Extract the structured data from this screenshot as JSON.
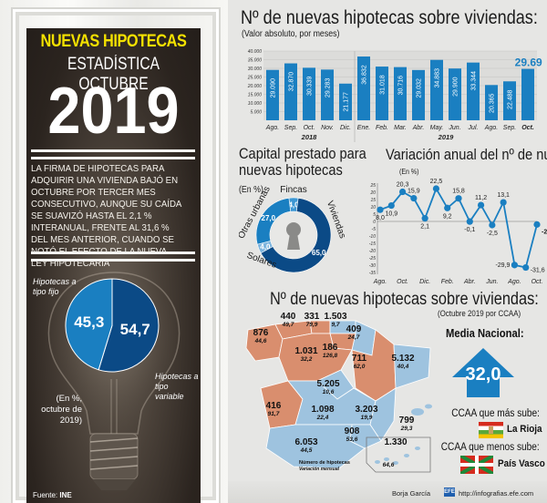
{
  "header": {
    "headline": "NUEVAS HIPOTECAS",
    "subheadline": "ESTADÍSTICA OCTUBRE",
    "year": "2019"
  },
  "summary": "LA FIRMA DE HIPOTECAS PARA ADQUIRIR UNA VIVIENDA BAJÓ EN OCTUBRE POR TERCER MES CONSECUTIVO, AUNQUE SU CAÍDA SE SUAVIZÓ HASTA EL 2,1 % INTERANUAL, FRENTE AL 31,6 % DEL MES ANTERIOR, CUANDO SE NOTÓ EL EFECTO DE LA NUEVA LEY HIPOTECARIA",
  "source_label": "Fuente:",
  "source_name": "INE",
  "footer": {
    "author": "Borja García",
    "logo_text": "EFE",
    "url": "http://infografias.efe.com"
  },
  "colors": {
    "bar_blue": "#1a7fc1",
    "dark_blue": "#0b4a86",
    "mid_blue": "#1a7fc1",
    "orange_region": "#d98e6e",
    "blue_region": "#9ec3df",
    "headline_yellow": "#f4e100"
  },
  "chart_data": [
    {
      "id": "monthly_bar",
      "type": "bar",
      "title": "Nº de nuevas hipotecas sobre viviendas:",
      "subtitle": "(Valor absoluto, por meses)",
      "categories": [
        "Ago.",
        "Sep.",
        "Oct.",
        "Nov.",
        "Dic.",
        "Ene.",
        "Feb.",
        "Mar.",
        "Abr.",
        "May.",
        "Jun.",
        "Jul.",
        "Ago.",
        "Sep.",
        "Oct."
      ],
      "year_groups": [
        {
          "label": "2018",
          "count": 5
        },
        {
          "label": "2019",
          "count": 10
        }
      ],
      "values": [
        29090,
        32870,
        30339,
        29283,
        21177,
        36832,
        31018,
        30716,
        29032,
        34883,
        29900,
        33344,
        20365,
        22488,
        29691
      ],
      "value_labels": [
        "29.090",
        "32.870",
        "30.339",
        "29.283",
        "21.177",
        "36.832",
        "31.018",
        "30.716",
        "29.032",
        "34.883",
        "29.900",
        "33.344",
        "20.365",
        "22.488",
        "29.691"
      ],
      "yticks": [
        "40.000",
        "35.000",
        "30.000",
        "25.000",
        "20.000",
        "15.000",
        "10.000",
        "5.000"
      ],
      "ylim": [
        0,
        40000
      ],
      "highlight_last": true
    },
    {
      "id": "capital_donut",
      "type": "pie",
      "title": "Capital prestado para nuevas hipotecas",
      "unit_label": "(En %)",
      "slices": [
        {
          "label": "Viviendas",
          "value": 65.0,
          "value_label": "65,0",
          "color": "#0b4a86"
        },
        {
          "label": "Solares",
          "value": 4.0,
          "value_label": "4,0",
          "color": "#7db4dd"
        },
        {
          "label": "Otras urbanas",
          "value": 27.0,
          "value_label": "27,0",
          "color": "#1a7fc1"
        },
        {
          "label": "Fincas",
          "value": 4.0,
          "value_label": "4,0",
          "color": "#3c97d3"
        }
      ]
    },
    {
      "id": "annual_variation",
      "type": "line",
      "title": "Variación anual del nº de nuevas hipotecas",
      "unit_label": "(En %)",
      "x": [
        "Ago.",
        "Sep.",
        "Oct.",
        "Nov.",
        "Dic.",
        "Ene.",
        "Feb.",
        "Mar.",
        "Abr.",
        "May.",
        "Jun.",
        "Jul.",
        "Ago.",
        "Sep.",
        "Oct."
      ],
      "xtick_labels": [
        "Ago.",
        "Oct.",
        "Dic.",
        "Feb.",
        "Abr.",
        "Jun.",
        "Ago.",
        "Oct."
      ],
      "values": [
        8.0,
        10.9,
        20.3,
        15.9,
        2.1,
        22.5,
        9.2,
        15.8,
        -0.1,
        11.2,
        -2.5,
        13.1,
        -29.9,
        -31.6,
        -2.1
      ],
      "value_labels": [
        "8,0",
        "10,9",
        "20,3",
        "15,9",
        "2,1",
        "22,5",
        "9,2",
        "15,8",
        "-0,1",
        "11,2",
        "-2,5",
        "13,1",
        "-29,9",
        "-31,6",
        "-2,1"
      ],
      "yticks": [
        "25",
        "20",
        "15",
        "10",
        "5",
        "0",
        "-5",
        "-10",
        "-15",
        "-20",
        "-25",
        "-30",
        "-35"
      ],
      "ylim": [
        -35,
        25
      ]
    },
    {
      "id": "fixed_vs_variable",
      "type": "pie",
      "note": "(En %, octubre de 2019)",
      "slices": [
        {
          "label": "Hipotecas a tipo fijo",
          "value": 45.3,
          "value_label": "45,3",
          "color": "#1a7fc1"
        },
        {
          "label": "Hipotecas a tipo variable",
          "value": 54.7,
          "value_label": "54,7",
          "color": "#0b4a86"
        }
      ]
    },
    {
      "id": "ccaa_map",
      "type": "table",
      "title": "Nº de nuevas hipotecas sobre viviendas:",
      "subtitle": "(Octubre 2019 por CCAA)",
      "legend_count": "Número de hipotecas",
      "legend_var": "Variación mensual",
      "regions": [
        {
          "name": "Galicia",
          "count": "876",
          "variation": "44,6",
          "trend": "orange"
        },
        {
          "name": "Asturias",
          "count": "440",
          "variation": "49,7",
          "trend": "orange"
        },
        {
          "name": "Cantabria",
          "count": "331",
          "variation": "79,9",
          "trend": "orange"
        },
        {
          "name": "País Vasco",
          "count": "1.503",
          "variation": "9,7",
          "trend": "blue"
        },
        {
          "name": "Navarra",
          "count": "409",
          "variation": "24,7",
          "trend": "blue"
        },
        {
          "name": "La Rioja",
          "count": "186",
          "variation": "126,8",
          "trend": "orange"
        },
        {
          "name": "Castilla y León",
          "count": "1.031",
          "variation": "32,2",
          "trend": "orange"
        },
        {
          "name": "Aragón",
          "count": "711",
          "variation": "62,0",
          "trend": "orange"
        },
        {
          "name": "Cataluña",
          "count": "5.132",
          "variation": "40,4",
          "trend": "blue"
        },
        {
          "name": "Madrid",
          "count": "5.205",
          "variation": "10,6",
          "trend": "blue"
        },
        {
          "name": "Extremadura",
          "count": "416",
          "variation": "91,7",
          "trend": "orange"
        },
        {
          "name": "Castilla-La Mancha",
          "count": "1.098",
          "variation": "22,4",
          "trend": "blue"
        },
        {
          "name": "C. Valenciana",
          "count": "3.203",
          "variation": "19,9",
          "trend": "blue"
        },
        {
          "name": "Baleares",
          "count": "799",
          "variation": "29,3",
          "trend": "blue"
        },
        {
          "name": "Murcia",
          "count": "908",
          "variation": "53,6",
          "trend": "blue"
        },
        {
          "name": "Andalucía",
          "count": "6.053",
          "variation": "44,5",
          "trend": "blue"
        },
        {
          "name": "Canarias",
          "count": "1.330",
          "variation": "64,6",
          "trend": "blue"
        }
      ]
    }
  ],
  "national": {
    "label": "Media Nacional:",
    "value": "32,0",
    "most_label": "CCAA que más sube:",
    "most_name": "La Rioja",
    "least_label": "CCAA que menos sube:",
    "least_name": "País Vasco"
  }
}
